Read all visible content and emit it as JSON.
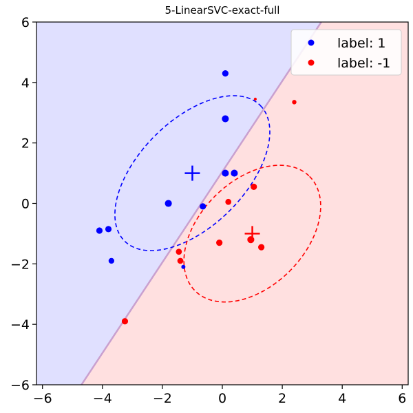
{
  "chart_data": {
    "type": "scatter",
    "title": "5-LinearSVC-exact-full",
    "xlabel": "",
    "ylabel": "",
    "xlim": [
      -6.2,
      6.2
    ],
    "ylim": [
      -6,
      6
    ],
    "xticks": [
      -6,
      -4,
      -2,
      0,
      2,
      4,
      6
    ],
    "yticks": [
      -6,
      -4,
      -2,
      0,
      2,
      4,
      6
    ],
    "tick_labels": {
      "x": [
        "−6",
        "−4",
        "−2",
        "0",
        "2",
        "4",
        "6"
      ],
      "y": [
        "−6",
        "−4",
        "−2",
        "0",
        "2",
        "4",
        "6"
      ]
    },
    "grid": false,
    "legend_position": "top-right",
    "decision_boundary": {
      "points": [
        [
          -4.7,
          -6
        ],
        [
          3.3,
          6
        ]
      ]
    },
    "regions": [
      {
        "name": "label 1 region",
        "color": "#e0e0ff"
      },
      {
        "name": "label -1 region",
        "color": "#ffe0e0"
      }
    ],
    "series": [
      {
        "name": "label: 1",
        "color": "#0000ff",
        "points": [
          {
            "x": 0.1,
            "y": 4.3,
            "s": 1
          },
          {
            "x": 0.1,
            "y": 2.8,
            "s": 1.1
          },
          {
            "x": 0.1,
            "y": 1.0,
            "s": 1.1
          },
          {
            "x": 0.4,
            "y": 1.0,
            "s": 1.1
          },
          {
            "x": -1.8,
            "y": 0.0,
            "s": 1.1
          },
          {
            "x": -0.65,
            "y": -0.1,
            "s": 1
          },
          {
            "x": -4.1,
            "y": -0.9,
            "s": 1
          },
          {
            "x": -3.8,
            "y": -0.85,
            "s": 1
          },
          {
            "x": -3.7,
            "y": -1.9,
            "s": 0.9
          },
          {
            "x": -1.3,
            "y": -2.1,
            "s": 0.65
          }
        ],
        "center": {
          "x": -1.0,
          "y": 1.0
        },
        "ellipse": {
          "cx": -1.0,
          "cy": 1.0,
          "rx": 3.2,
          "ry": 1.75,
          "angle_deg": 45
        }
      },
      {
        "name": "label: -1",
        "color": "#ff0000",
        "points": [
          {
            "x": 1.1,
            "y": 3.45,
            "s": 0.45
          },
          {
            "x": 2.4,
            "y": 3.35,
            "s": 0.7
          },
          {
            "x": 1.05,
            "y": 0.55,
            "s": 1
          },
          {
            "x": 0.2,
            "y": 0.05,
            "s": 0.95
          },
          {
            "x": -0.1,
            "y": -1.3,
            "s": 1
          },
          {
            "x": 0.95,
            "y": -1.2,
            "s": 1.1
          },
          {
            "x": 1.3,
            "y": -1.45,
            "s": 1
          },
          {
            "x": -1.45,
            "y": -1.6,
            "s": 0.95
          },
          {
            "x": -1.4,
            "y": -1.9,
            "s": 0.95
          },
          {
            "x": -3.25,
            "y": -3.9,
            "s": 1
          }
        ],
        "center": {
          "x": 1.0,
          "y": -1.0
        },
        "ellipse": {
          "cx": 1.0,
          "cy": -1.0,
          "rx": 2.7,
          "ry": 1.75,
          "angle_deg": 45
        }
      }
    ]
  }
}
